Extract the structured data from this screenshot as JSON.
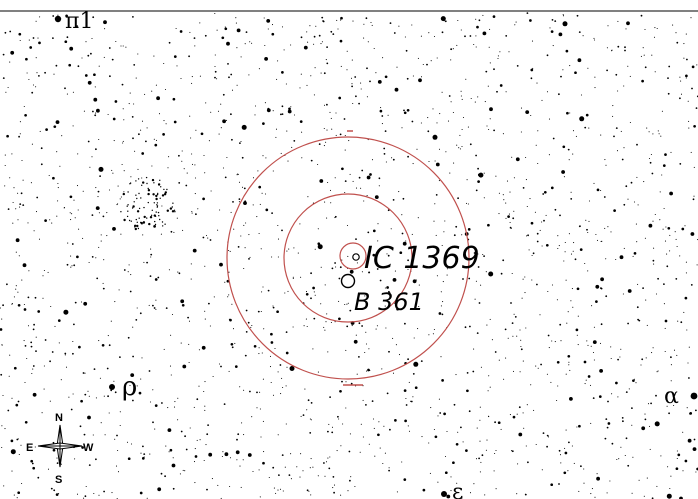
{
  "chart": {
    "objects": [
      {
        "label": "IC 1369",
        "kind": "open-cluster"
      },
      {
        "label": "B 361",
        "kind": "dark-nebula"
      }
    ],
    "star_labels": [
      "π1",
      "ρ",
      "α",
      "ε"
    ],
    "compass": {
      "n": "N",
      "s": "S",
      "e": "E",
      "w": "W"
    },
    "finder_circle_color": "#c0504d",
    "star_color": "#000000"
  }
}
